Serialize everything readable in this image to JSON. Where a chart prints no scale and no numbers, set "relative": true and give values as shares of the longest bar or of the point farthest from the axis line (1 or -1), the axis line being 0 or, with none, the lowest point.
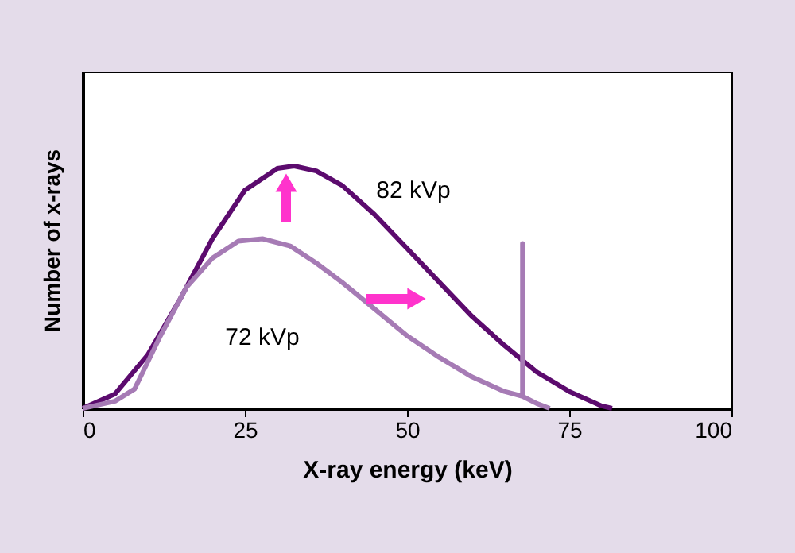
{
  "chart_data": {
    "type": "line",
    "relative": true,
    "xlabel": "X-ray energy (keV)",
    "ylabel": "Number of x-rays",
    "xlim": [
      0,
      100
    ],
    "xticks": [
      0,
      25,
      50,
      75,
      100
    ],
    "grid": false,
    "marker": "none",
    "line_style": "solid",
    "series": [
      {
        "name": "82 kVp",
        "color": "#5c0b6e",
        "x": [
          0,
          5,
          10,
          15,
          20,
          25,
          30,
          32.6,
          36,
          40,
          45,
          50,
          55,
          60,
          65,
          70,
          75,
          80,
          81.6
        ],
        "values": [
          0,
          0.06,
          0.22,
          0.45,
          0.7,
          0.9,
          0.99,
          1,
          0.98,
          0.92,
          0.8,
          0.66,
          0.52,
          0.38,
          0.26,
          0.15,
          0.07,
          0.01,
          0
        ]
      },
      {
        "name": "72 kVp",
        "color": "#a67bb5",
        "x": [
          0,
          5,
          8,
          12,
          16,
          20,
          24,
          27.7,
          32,
          36,
          40,
          45,
          50,
          55,
          60,
          65,
          67.8,
          67.8,
          67.8,
          70,
          72
        ],
        "values": [
          0,
          0.03,
          0.08,
          0.3,
          0.5,
          0.62,
          0.69,
          0.7,
          0.67,
          0.6,
          0.52,
          0.41,
          0.3,
          0.21,
          0.13,
          0.07,
          0.05,
          0.68,
          0.05,
          0.02,
          0
        ]
      }
    ]
  }
}
